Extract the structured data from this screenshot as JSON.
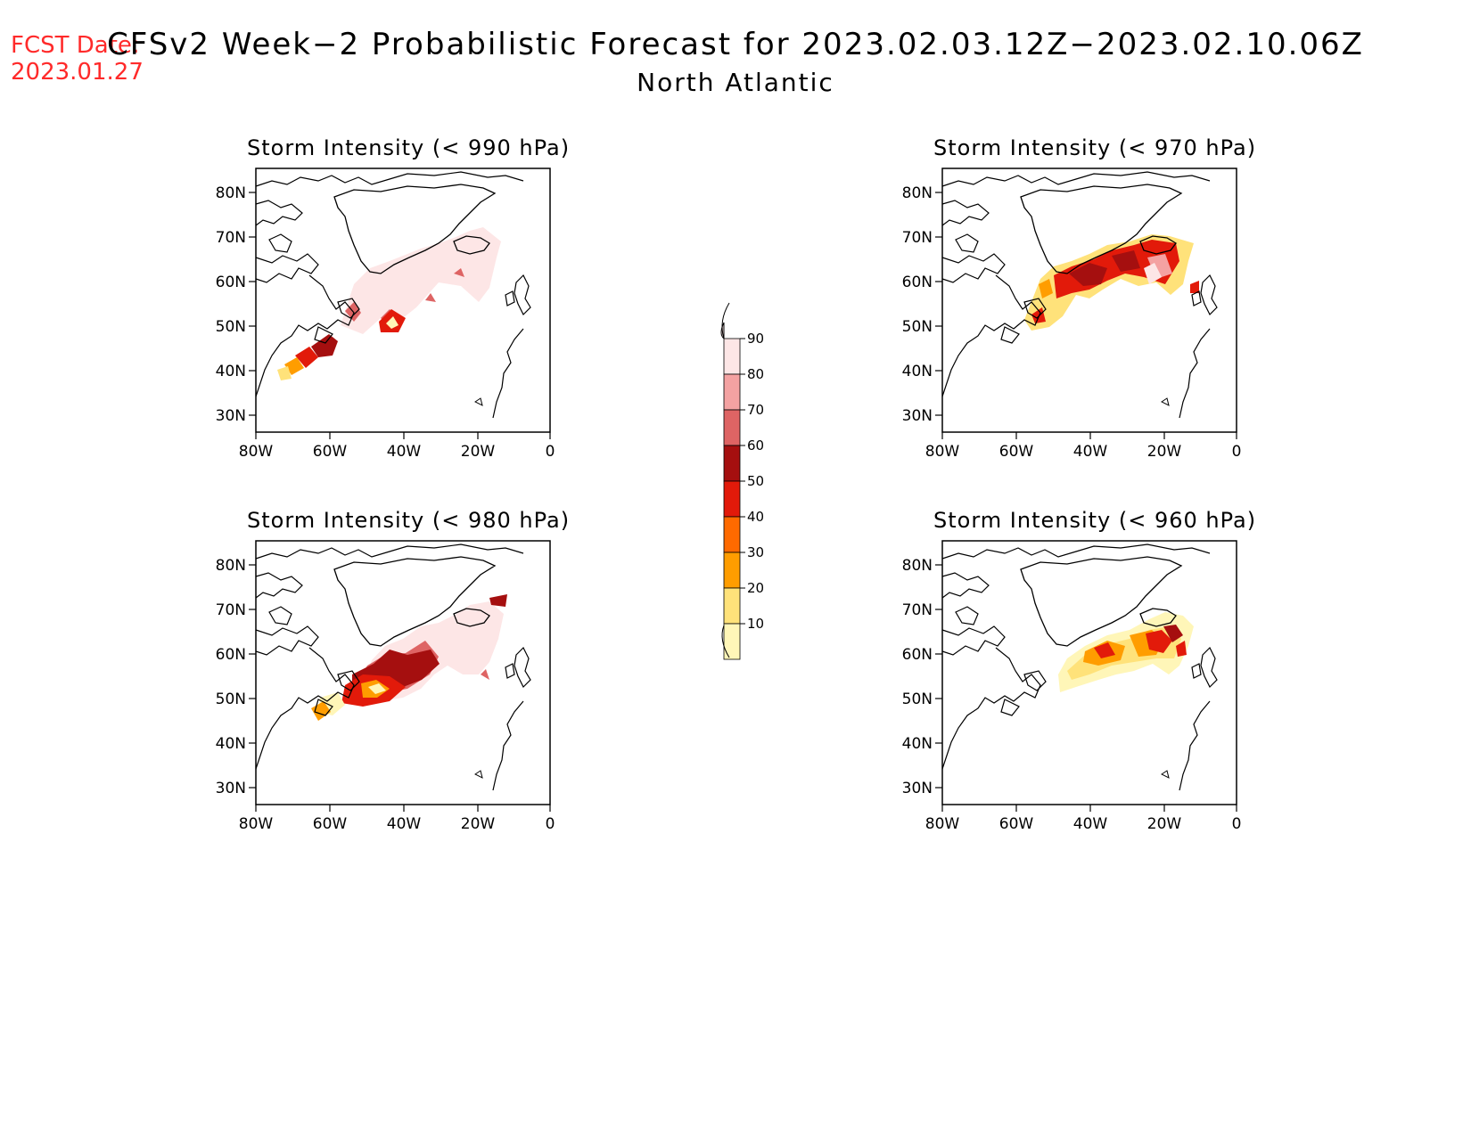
{
  "header": {
    "fcst_label": "FCST Date:",
    "fcst_date": "2023.01.27",
    "title": "CFSv2 Week−2 Probabilistic Forecast for 2023.02.03.12Z−2023.02.10.06Z",
    "subtitle": "North Atlantic"
  },
  "panels": [
    {
      "id": "p990",
      "title": "Storm Intensity (< 990 hPa)"
    },
    {
      "id": "p970",
      "title": "Storm Intensity (< 970 hPa)"
    },
    {
      "id": "p980",
      "title": "Storm Intensity (< 980 hPa)"
    },
    {
      "id": "p960",
      "title": "Storm Intensity (< 960 hPa)"
    }
  ],
  "axes": {
    "lat_labels": [
      "80N",
      "70N",
      "60N",
      "50N",
      "40N",
      "30N"
    ],
    "lon_labels": [
      "80W",
      "60W",
      "40W",
      "20W",
      "0"
    ]
  },
  "colorbar": {
    "labels": [
      "90",
      "80",
      "70",
      "60",
      "50",
      "40",
      "30",
      "20",
      "10"
    ],
    "colors": [
      "#fde6e6",
      "#f4a2a2",
      "#de6464",
      "#a50f0f",
      "#e21a0a",
      "#ff6a00",
      "#ff9d00",
      "#ffe27a",
      "#fff6b8"
    ]
  },
  "color_scale": {
    "p10": "#fff6b8",
    "p20": "#ffe27a",
    "p30": "#ff9d00",
    "p40": "#ff6a00",
    "p50": "#e21a0a",
    "p60": "#a50f0f",
    "p70": "#de6464",
    "p80": "#f4a2a2",
    "p90": "#fde6e6"
  }
}
